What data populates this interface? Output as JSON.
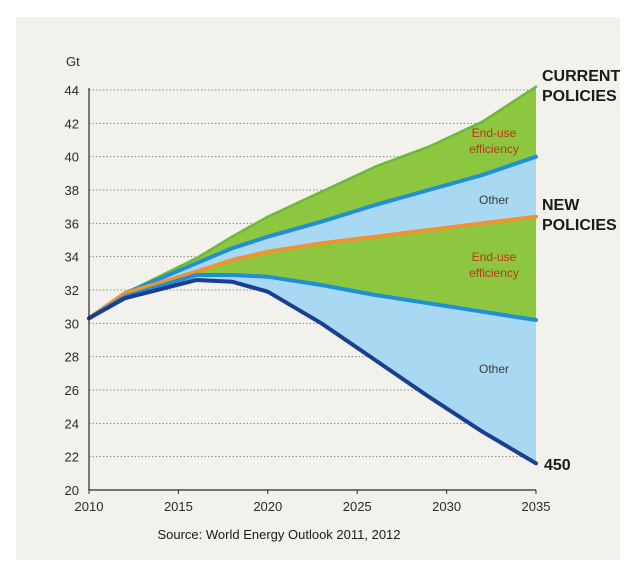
{
  "chart_data": {
    "type": "area",
    "unit_label": "Gt",
    "x": [
      2010,
      2012,
      2016,
      2018,
      2020,
      2023,
      2026,
      2029,
      2032,
      2035
    ],
    "ylim": [
      20,
      44
    ],
    "yticks": [
      20,
      22,
      24,
      26,
      28,
      30,
      32,
      34,
      36,
      38,
      40,
      42,
      44
    ],
    "xticks": [
      2010,
      2015,
      2020,
      2025,
      2030,
      2035
    ],
    "series": [
      {
        "key": "current",
        "color": "#6cb83a",
        "values": [
          30.3,
          31.8,
          33.9,
          35.2,
          36.4,
          37.9,
          39.4,
          40.6,
          42.1,
          44.2
        ]
      },
      {
        "key": "mid_upper",
        "color": "#1f8fd6",
        "values": [
          30.3,
          31.8,
          33.6,
          34.5,
          35.2,
          36.1,
          37.1,
          38.0,
          38.9,
          40.0
        ]
      },
      {
        "key": "new",
        "color": "#f0922e",
        "values": [
          30.3,
          31.8,
          33.1,
          33.8,
          34.3,
          34.8,
          35.2,
          35.6,
          36.0,
          36.4
        ]
      },
      {
        "key": "mid_lower",
        "color": "#1f8fd6",
        "values": [
          30.3,
          31.6,
          32.9,
          32.9,
          32.8,
          32.3,
          31.7,
          31.2,
          30.7,
          30.2
        ]
      },
      {
        "key": "p450",
        "color": "#1b3f8f",
        "values": [
          30.3,
          31.5,
          32.6,
          32.5,
          31.9,
          30.0,
          27.8,
          25.6,
          23.5,
          21.6
        ]
      }
    ],
    "bands": [
      {
        "upper": "current",
        "lower": "mid_upper",
        "color": "#8dc63f",
        "label_key": "eff_top"
      },
      {
        "upper": "mid_upper",
        "lower": "new",
        "color": "#a8d8f2",
        "label_key": "other_top"
      },
      {
        "upper": "new",
        "lower": "mid_lower",
        "color": "#8dc63f",
        "label_key": "eff_bottom"
      },
      {
        "upper": "mid_lower",
        "lower": "p450",
        "color": "#a8d8f2",
        "label_key": "other_bottom"
      }
    ],
    "labels": {
      "current_line1": "CURRENT",
      "current_line2": "POLICIES",
      "new_line1": "NEW",
      "new_line2": "POLICIES",
      "p450": "450",
      "eff_top_line1": "End-use",
      "eff_top_line2": "efficiency",
      "other_top": "Other",
      "eff_bottom_line1": "End-use",
      "eff_bottom_line2": "efficiency",
      "other_bottom": "Other"
    },
    "source": "Source: World Energy Outlook 2011, 2012",
    "grid": true
  }
}
